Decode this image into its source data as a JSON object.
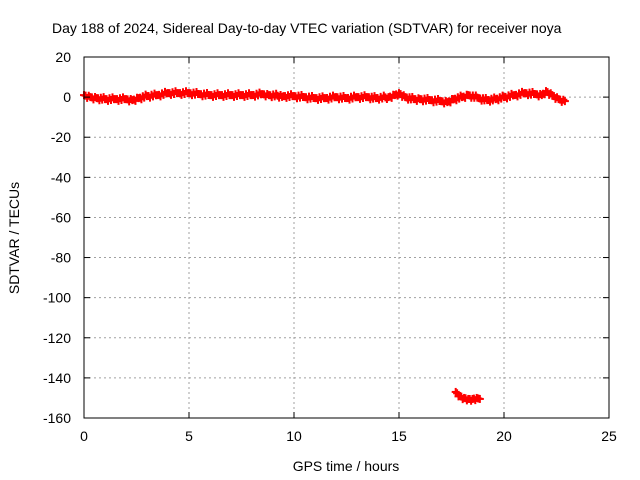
{
  "chart_data": {
    "type": "scatter",
    "title": "Day 188 of 2024, Sidereal Day-to-day VTEC variation (SDTVAR) for receiver noya",
    "xlabel": "GPS time / hours",
    "ylabel": "SDTVAR / TECUs",
    "xlim": [
      0,
      25
    ],
    "ylim": [
      -160,
      20
    ],
    "x_ticks": [
      "0",
      "5",
      "10",
      "15",
      "20",
      "25"
    ],
    "y_ticks": [
      "20",
      "0",
      "-20",
      "-40",
      "-60",
      "-80",
      "-100",
      "-120",
      "-140",
      "-160"
    ],
    "grid": true,
    "marker": "plus",
    "color": "#ff0000",
    "series": [
      {
        "x": [
          0.0,
          0.3,
          0.6,
          1.0,
          1.5,
          2.0,
          2.3,
          2.6,
          3.0,
          3.5,
          4.0,
          4.5,
          5.0,
          5.5,
          6.0,
          6.5,
          7.0,
          7.5,
          8.0,
          8.5,
          8.8,
          9.5,
          10.0,
          10.5,
          11.0,
          11.5,
          12.0,
          12.5,
          13.0,
          13.5,
          13.9,
          14.5,
          14.8,
          15.0,
          15.3,
          15.7,
          16.0,
          16.5,
          17.0,
          17.3,
          17.6,
          18.0,
          18.3,
          18.8,
          19.2,
          19.6,
          20.0,
          20.5,
          21.0,
          21.5,
          21.8,
          22.0,
          22.3,
          22.6,
          22.9
        ],
        "y": [
          1.0,
          0.0,
          -0.5,
          -1.0,
          -1.0,
          -1.0,
          -1.5,
          -0.5,
          0.5,
          1.0,
          2.0,
          2.0,
          2.0,
          1.5,
          1.0,
          1.0,
          1.0,
          1.0,
          1.0,
          1.5,
          1.0,
          0.5,
          0.5,
          0.0,
          -0.5,
          -0.5,
          0.0,
          -0.5,
          0.0,
          0.0,
          -0.5,
          0.0,
          1.0,
          2.0,
          0.0,
          -1.0,
          -1.0,
          -1.5,
          -2.0,
          -2.5,
          -1.0,
          0.0,
          1.0,
          -0.5,
          -1.5,
          -1.0,
          0.0,
          1.0,
          2.0,
          1.5,
          1.0,
          3.0,
          1.0,
          -1.0,
          -2.0
        ]
      },
      {
        "x": [
          17.7,
          17.9,
          18.1,
          18.3,
          18.5,
          18.7,
          18.85
        ],
        "y": [
          -147,
          -149,
          -150,
          -150.5,
          -150.5,
          -150,
          -150.5
        ]
      }
    ]
  }
}
